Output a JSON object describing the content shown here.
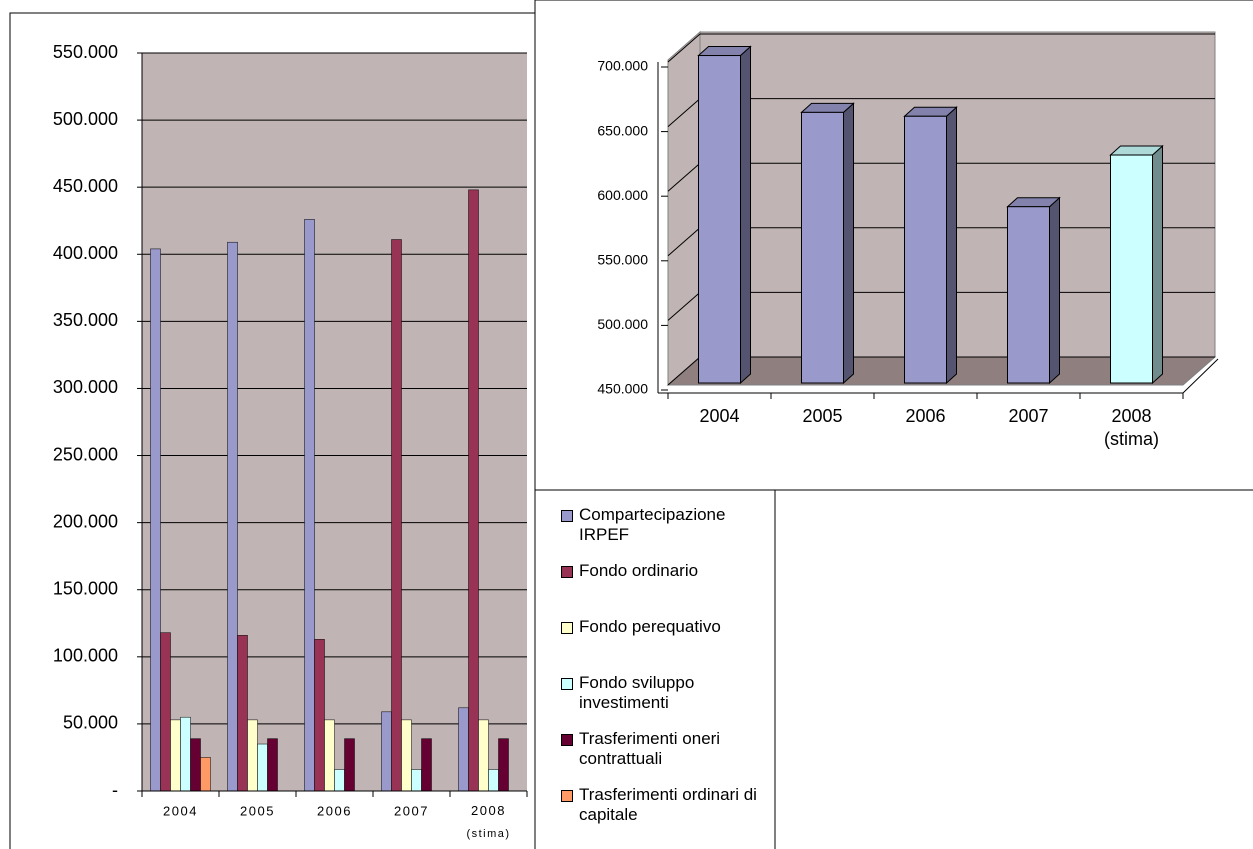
{
  "chart_data": [
    {
      "type": "bar",
      "categories": [
        "2004",
        "2005",
        "2006",
        "2007",
        "2008\n(stima)"
      ],
      "series": [
        {
          "name": "Compartecipazione IRPEF",
          "color": "#9999cc",
          "values": [
            404000,
            409000,
            426000,
            59000,
            62000
          ]
        },
        {
          "name": "Fondo ordinario",
          "color": "#993355",
          "values": [
            118000,
            116000,
            113000,
            411000,
            448000
          ]
        },
        {
          "name": "Fondo perequativo",
          "color": "#ffffcc",
          "values": [
            53000,
            53000,
            53000,
            53000,
            53000
          ]
        },
        {
          "name": "Fondo sviluppo investimenti",
          "color": "#ccffff",
          "values": [
            55000,
            35000,
            16000,
            16000,
            16000
          ]
        },
        {
          "name": "Trasferimenti oneri contrattuali",
          "color": "#660033",
          "values": [
            39000,
            39000,
            39000,
            39000,
            39000
          ]
        },
        {
          "name": "Trasferimenti ordinari di capitale",
          "color": "#ff9966",
          "values": [
            25000,
            null,
            null,
            null,
            null
          ]
        }
      ],
      "ylim": [
        0,
        550000
      ],
      "yticks": [
        {
          "value": 0,
          "label": "-"
        },
        {
          "value": 50000,
          "label": "50.000"
        },
        {
          "value": 100000,
          "label": "100.000"
        },
        {
          "value": 150000,
          "label": "150.000"
        },
        {
          "value": 200000,
          "label": "200.000"
        },
        {
          "value": 250000,
          "label": "250.000"
        },
        {
          "value": 300000,
          "label": "300.000"
        },
        {
          "value": 350000,
          "label": "350.000"
        },
        {
          "value": 400000,
          "label": "400.000"
        },
        {
          "value": 450000,
          "label": "450.000"
        },
        {
          "value": 500000,
          "label": "500.000"
        },
        {
          "value": 550000,
          "label": "550.000"
        }
      ],
      "grid": true
    },
    {
      "type": "bar3d",
      "categories": [
        "2004",
        "2005",
        "2006",
        "2007",
        "2008\n(stima)"
      ],
      "values": [
        705000,
        661000,
        658000,
        588000,
        628000
      ],
      "colors": [
        "#9999cc",
        "#9999cc",
        "#9999cc",
        "#9999cc",
        "#ccffff"
      ],
      "ylim": [
        450000,
        700000
      ],
      "yticks": [
        {
          "value": 450000,
          "label": "450.000"
        },
        {
          "value": 500000,
          "label": "500.000"
        },
        {
          "value": 550000,
          "label": "550.000"
        },
        {
          "value": 600000,
          "label": "600.000"
        },
        {
          "value": 650000,
          "label": "650.000"
        },
        {
          "value": 700000,
          "label": "700.000"
        }
      ],
      "grid": true
    }
  ]
}
